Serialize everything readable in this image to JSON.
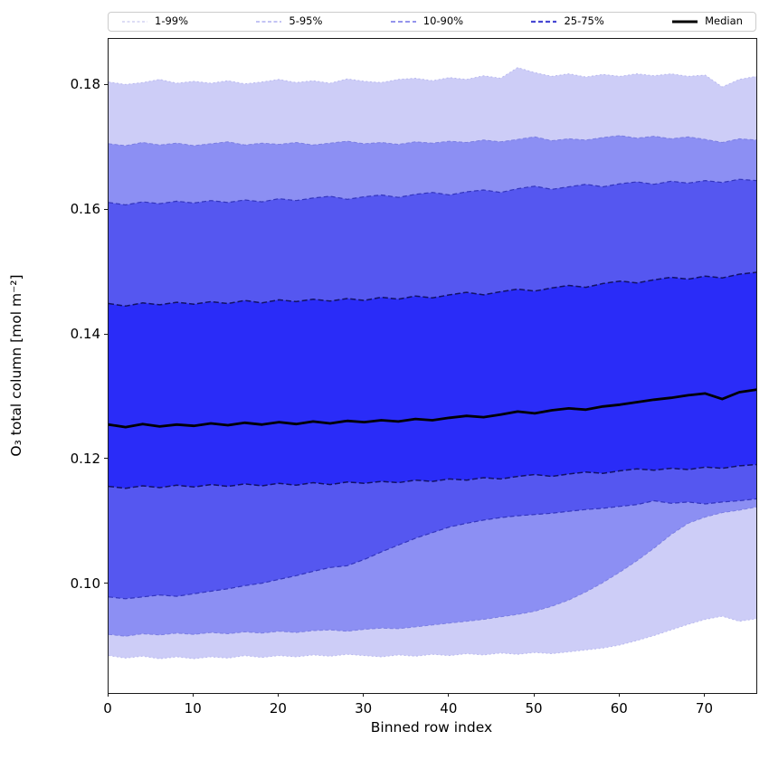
{
  "figure": {
    "background": "#ffffff",
    "axes_edge_color": "#1a1a1a",
    "text_color": "#000000"
  },
  "chart_data": {
    "type": "area",
    "subtype": "percentile-fan-chart",
    "title": "",
    "xlabel": "Binned row index",
    "ylabel": "O₃ total column [mol m⁻²]",
    "xlim": [
      0,
      76
    ],
    "ylim": [
      0.0826,
      0.1874
    ],
    "grid": false,
    "xticks": {
      "values": [
        0,
        10,
        20,
        30,
        40,
        50,
        60,
        70
      ],
      "labels": [
        "0",
        "10",
        "20",
        "30",
        "40",
        "50",
        "60",
        "70"
      ]
    },
    "yticks": {
      "values": [
        0.1,
        0.12,
        0.14,
        0.16,
        0.18
      ],
      "labels": [
        "0.10",
        "0.12",
        "0.14",
        "0.16",
        "0.18"
      ]
    },
    "legend": {
      "position": "top-outside",
      "entries": [
        {
          "label": "1-99%",
          "color": "#c8c8ef",
          "dash": "3,2.5",
          "width": 1.2
        },
        {
          "label": "5-95%",
          "color": "#9fa0ee",
          "dash": "4,2.5",
          "width": 1.3
        },
        {
          "label": "10-90%",
          "color": "#7070e6",
          "dash": "5,3",
          "width": 1.6
        },
        {
          "label": "25-75%",
          "color": "#4747d2",
          "dash": "5,3",
          "width": 2.2
        },
        {
          "label": "Median",
          "color": "#000000",
          "dash": "",
          "width": 3
        }
      ]
    },
    "x": [
      0,
      2,
      4,
      6,
      8,
      10,
      12,
      14,
      16,
      18,
      20,
      22,
      24,
      26,
      28,
      30,
      32,
      34,
      36,
      38,
      40,
      42,
      44,
      46,
      48,
      50,
      52,
      54,
      56,
      58,
      60,
      62,
      64,
      66,
      68,
      70,
      72,
      74,
      76
    ],
    "percentiles": {
      "p01": [
        0.0886,
        0.0882,
        0.0885,
        0.0881,
        0.0884,
        0.0881,
        0.0884,
        0.0882,
        0.0886,
        0.0883,
        0.0886,
        0.0884,
        0.0887,
        0.0885,
        0.0888,
        0.0886,
        0.0884,
        0.0887,
        0.0885,
        0.0888,
        0.0886,
        0.0889,
        0.0887,
        0.089,
        0.0888,
        0.0891,
        0.0889,
        0.0892,
        0.0895,
        0.0898,
        0.0903,
        0.091,
        0.0918,
        0.0927,
        0.0936,
        0.0944,
        0.0949,
        0.0941,
        0.0945
      ],
      "p05": [
        0.092,
        0.0917,
        0.0921,
        0.0919,
        0.0922,
        0.092,
        0.0923,
        0.0921,
        0.0924,
        0.0922,
        0.0925,
        0.0923,
        0.0926,
        0.0927,
        0.0925,
        0.0928,
        0.093,
        0.0929,
        0.0932,
        0.0935,
        0.0938,
        0.0941,
        0.0944,
        0.0948,
        0.0952,
        0.0957,
        0.0965,
        0.0975,
        0.0988,
        0.1003,
        0.102,
        0.1038,
        0.1058,
        0.108,
        0.1098,
        0.1108,
        0.1115,
        0.1119,
        0.1124
      ],
      "p10": [
        0.098,
        0.0977,
        0.098,
        0.0983,
        0.0981,
        0.0985,
        0.0989,
        0.0993,
        0.0998,
        0.1002,
        0.1008,
        0.1014,
        0.1021,
        0.1027,
        0.103,
        0.104,
        0.1052,
        0.1063,
        0.1074,
        0.1083,
        0.1092,
        0.1098,
        0.1103,
        0.1107,
        0.111,
        0.1112,
        0.1114,
        0.1117,
        0.112,
        0.1122,
        0.1125,
        0.1128,
        0.1134,
        0.113,
        0.1132,
        0.1129,
        0.1132,
        0.1134,
        0.1137
      ],
      "p25": [
        0.1157,
        0.1154,
        0.1158,
        0.1155,
        0.1159,
        0.1156,
        0.116,
        0.1157,
        0.1161,
        0.1158,
        0.1162,
        0.1159,
        0.1163,
        0.116,
        0.1164,
        0.1162,
        0.1165,
        0.1163,
        0.1167,
        0.1165,
        0.1169,
        0.1167,
        0.1171,
        0.1169,
        0.1173,
        0.1176,
        0.1173,
        0.1177,
        0.118,
        0.1178,
        0.1182,
        0.1185,
        0.1183,
        0.1186,
        0.1184,
        0.1188,
        0.1186,
        0.119,
        0.1192
      ],
      "p75": [
        0.145,
        0.1446,
        0.1451,
        0.1448,
        0.1452,
        0.1449,
        0.1453,
        0.145,
        0.1455,
        0.1451,
        0.1456,
        0.1453,
        0.1457,
        0.1454,
        0.1458,
        0.1455,
        0.146,
        0.1457,
        0.1462,
        0.1459,
        0.1464,
        0.1468,
        0.1464,
        0.1469,
        0.1473,
        0.147,
        0.1475,
        0.1479,
        0.1476,
        0.1482,
        0.1486,
        0.1483,
        0.1488,
        0.1492,
        0.1489,
        0.1494,
        0.1491,
        0.1497,
        0.15
      ],
      "p90": [
        0.1612,
        0.1608,
        0.1613,
        0.161,
        0.1614,
        0.1611,
        0.1615,
        0.1612,
        0.1616,
        0.1613,
        0.1618,
        0.1615,
        0.1619,
        0.1622,
        0.1617,
        0.1621,
        0.1624,
        0.162,
        0.1625,
        0.1628,
        0.1624,
        0.1629,
        0.1632,
        0.1628,
        0.1634,
        0.1638,
        0.1633,
        0.1637,
        0.1641,
        0.1637,
        0.1642,
        0.1645,
        0.1641,
        0.1646,
        0.1643,
        0.1647,
        0.1644,
        0.1649,
        0.1647
      ],
      "p95": [
        0.1706,
        0.1703,
        0.1708,
        0.1704,
        0.1707,
        0.1703,
        0.1706,
        0.1709,
        0.1704,
        0.1707,
        0.1705,
        0.1708,
        0.1704,
        0.1707,
        0.171,
        0.1706,
        0.1708,
        0.1705,
        0.1709,
        0.1707,
        0.171,
        0.1708,
        0.1712,
        0.1709,
        0.1713,
        0.1717,
        0.1711,
        0.1714,
        0.1712,
        0.1716,
        0.1719,
        0.1715,
        0.1718,
        0.1714,
        0.1717,
        0.1713,
        0.1708,
        0.1714,
        0.1712
      ],
      "p99": [
        0.1805,
        0.1801,
        0.1804,
        0.1809,
        0.1803,
        0.1806,
        0.1803,
        0.1807,
        0.1802,
        0.1805,
        0.1809,
        0.1804,
        0.1807,
        0.1803,
        0.181,
        0.1806,
        0.1804,
        0.1809,
        0.1811,
        0.1807,
        0.1812,
        0.1809,
        0.1815,
        0.1811,
        0.1828,
        0.182,
        0.1814,
        0.1818,
        0.1813,
        0.1817,
        0.1814,
        0.1818,
        0.1815,
        0.1818,
        0.1814,
        0.1816,
        0.1797,
        0.1809,
        0.1814
      ]
    },
    "median": [
      0.1256,
      0.1252,
      0.1257,
      0.1253,
      0.1256,
      0.1254,
      0.1258,
      0.1255,
      0.1259,
      0.1256,
      0.126,
      0.1257,
      0.1261,
      0.1258,
      0.1262,
      0.126,
      0.1263,
      0.1261,
      0.1265,
      0.1263,
      0.1267,
      0.127,
      0.1268,
      0.1272,
      0.1277,
      0.1274,
      0.1279,
      0.1282,
      0.128,
      0.1285,
      0.1288,
      0.1292,
      0.1296,
      0.1299,
      0.1303,
      0.1306,
      0.1297,
      0.1308,
      0.1312
    ],
    "bands": [
      {
        "label": "1-99%",
        "upper": "p99",
        "lower": "p01",
        "fill": "#cdcdf7",
        "edge": "#b9b9ef",
        "dash": "2,2.5",
        "edge_width": 1
      },
      {
        "label": "5-95%",
        "upper": "p95",
        "lower": "p05",
        "fill": "#8c8ff3",
        "edge": "#7b7ee2",
        "dash": "4,2.5",
        "edge_width": 1
      },
      {
        "label": "10-90%",
        "upper": "p90",
        "lower": "p10",
        "fill": "#5557f0",
        "edge": "#3335bd",
        "dash": "5,3",
        "edge_width": 1.2
      },
      {
        "label": "25-75%",
        "upper": "p75",
        "lower": "p25",
        "fill": "#2a2cf8",
        "edge": "#121264",
        "dash": "6,3",
        "edge_width": 1.5
      }
    ],
    "median_style": {
      "color": "#000000",
      "width": 2.8
    }
  }
}
